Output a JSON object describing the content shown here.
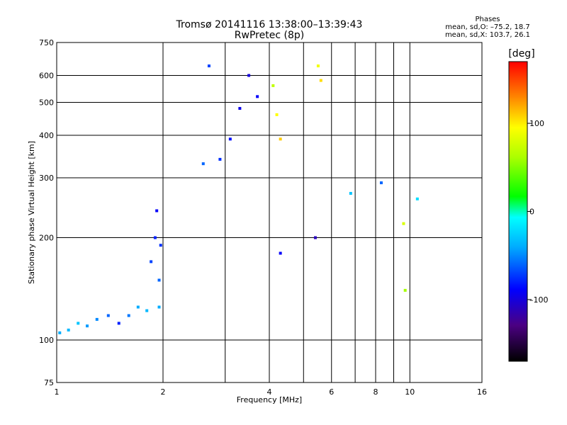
{
  "header": {
    "title": "Tromsø 20141116 13:38:00–13:39:43",
    "subtitle": "RwPretec (8p)"
  },
  "stats": {
    "heading": "Phases",
    "line_o": "mean, sd,O: –75.2, 18.7",
    "line_x": "mean, sd,X: 103.7, 26.1"
  },
  "chart_data": {
    "type": "scatter",
    "xlabel": "Frequency [MHz]",
    "ylabel": "Stationary phase Virtual Height [km]",
    "x_scale": "log",
    "y_scale": "log",
    "xlim": [
      1,
      16
    ],
    "ylim": [
      75,
      750
    ],
    "x_ticks": [
      1,
      2,
      4,
      6,
      8,
      10,
      16
    ],
    "x_tick_labels": [
      "1",
      "2",
      "4",
      "6",
      "8",
      "10",
      "16"
    ],
    "x_minor_ticks": [
      3,
      5,
      7,
      9
    ],
    "y_ticks": [
      75,
      100,
      200,
      300,
      400,
      500,
      600,
      750
    ],
    "y_tick_labels": [
      "75",
      "100",
      "200",
      "300",
      "400",
      "500",
      "600",
      "750"
    ],
    "grid": true,
    "colorbar": {
      "label": "[deg]",
      "min": -170,
      "max": 170,
      "ticks": [
        100,
        0,
        -100
      ],
      "tick_labels": [
        "100",
        "0",
        "–100"
      ]
    },
    "series": [
      {
        "values": [
          {
            "x": 1.02,
            "y": 105,
            "phase": -40
          },
          {
            "x": 1.08,
            "y": 107,
            "phase": -35
          },
          {
            "x": 1.15,
            "y": 112,
            "phase": -30
          },
          {
            "x": 1.22,
            "y": 110,
            "phase": -45
          },
          {
            "x": 1.3,
            "y": 115,
            "phase": -50
          },
          {
            "x": 1.4,
            "y": 118,
            "phase": -60
          },
          {
            "x": 1.5,
            "y": 112,
            "phase": -80
          },
          {
            "x": 1.6,
            "y": 118,
            "phase": -55
          },
          {
            "x": 1.7,
            "y": 125,
            "phase": -40
          },
          {
            "x": 1.8,
            "y": 122,
            "phase": -35
          },
          {
            "x": 1.95,
            "y": 125,
            "phase": -40
          },
          {
            "x": 1.85,
            "y": 170,
            "phase": -70
          },
          {
            "x": 1.9,
            "y": 200,
            "phase": -80
          },
          {
            "x": 1.92,
            "y": 240,
            "phase": -90
          },
          {
            "x": 1.95,
            "y": 150,
            "phase": -60
          },
          {
            "x": 1.97,
            "y": 190,
            "phase": -75
          },
          {
            "x": 2.6,
            "y": 330,
            "phase": -60
          },
          {
            "x": 2.9,
            "y": 340,
            "phase": -75
          },
          {
            "x": 3.1,
            "y": 390,
            "phase": -85
          },
          {
            "x": 3.3,
            "y": 480,
            "phase": -95
          },
          {
            "x": 3.5,
            "y": 600,
            "phase": -100
          },
          {
            "x": 3.7,
            "y": 520,
            "phase": -90
          },
          {
            "x": 2.7,
            "y": 640,
            "phase": -70
          },
          {
            "x": 4.2,
            "y": 460,
            "phase": 95
          },
          {
            "x": 4.3,
            "y": 390,
            "phase": 110
          },
          {
            "x": 4.1,
            "y": 560,
            "phase": 70
          },
          {
            "x": 5.6,
            "y": 580,
            "phase": 105
          },
          {
            "x": 5.5,
            "y": 640,
            "phase": 90
          },
          {
            "x": 5.4,
            "y": 200,
            "phase": -110
          },
          {
            "x": 4.3,
            "y": 180,
            "phase": -90
          },
          {
            "x": 6.8,
            "y": 270,
            "phase": -30
          },
          {
            "x": 8.3,
            "y": 290,
            "phase": -60
          },
          {
            "x": 9.6,
            "y": 220,
            "phase": 80
          },
          {
            "x": 9.7,
            "y": 140,
            "phase": 60
          },
          {
            "x": 10.5,
            "y": 260,
            "phase": -20
          }
        ]
      }
    ]
  }
}
